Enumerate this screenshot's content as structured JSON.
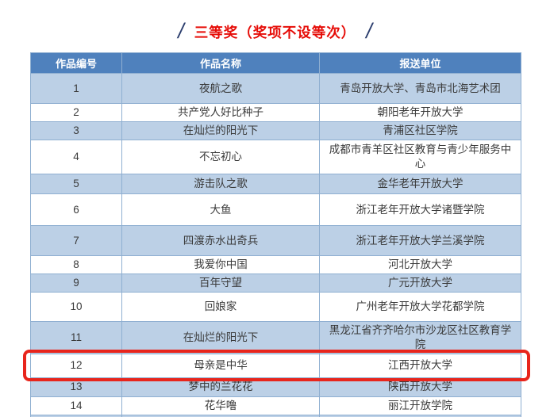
{
  "page": {
    "background": "#ffffff"
  },
  "title": {
    "text": "三等奖（奖项不设等次）",
    "left_slash": "/",
    "right_slash": "/",
    "color": "#e60c07",
    "slash_color": "#2c3e6e"
  },
  "table": {
    "headers": [
      "作品编号",
      "作品名称",
      "报送单位"
    ],
    "header_bg": "#4f81bd",
    "header_text_color": "#ffffff",
    "band_color": "#bcd0e6",
    "alt_color": "#ffffff",
    "border_color": "#8fafd1",
    "highlight_color": "#e8251c",
    "rows": [
      {
        "no": "1",
        "name": "夜航之歌",
        "unit": "青岛开放大学、青岛市北海艺术团",
        "highlighted": false
      },
      {
        "no": "2",
        "name": "共产党人好比种子",
        "unit": "朝阳老年开放大学",
        "highlighted": false
      },
      {
        "no": "3",
        "name": "在灿烂的阳光下",
        "unit": "青浦区社区学院",
        "highlighted": false
      },
      {
        "no": "4",
        "name": "不忘初心",
        "unit": "成都市青羊区社区教育与青少年服务中心",
        "highlighted": false
      },
      {
        "no": "5",
        "name": "游击队之歌",
        "unit": "金华老年开放大学",
        "highlighted": false
      },
      {
        "no": "6",
        "name": "大鱼",
        "unit": "浙江老年开放大学诸暨学院",
        "highlighted": false
      },
      {
        "no": "7",
        "name": "四渡赤水出奇兵",
        "unit": "浙江老年开放大学兰溪学院",
        "highlighted": false
      },
      {
        "no": "8",
        "name": "我爱你中国",
        "unit": "河北开放大学",
        "highlighted": false
      },
      {
        "no": "9",
        "name": "百年守望",
        "unit": "广元开放大学",
        "highlighted": false
      },
      {
        "no": "10",
        "name": "回娘家",
        "unit": "广州老年开放大学花都学院",
        "highlighted": false
      },
      {
        "no": "11",
        "name": "在灿烂的阳光下",
        "unit": "黑龙江省齐齐哈尔市沙龙区社区教育学院",
        "highlighted": false
      },
      {
        "no": "12",
        "name": "母亲是中华",
        "unit": "江西开放大学",
        "highlighted": true
      },
      {
        "no": "13",
        "name": "梦中的兰花花",
        "unit": "陕西开放大学",
        "highlighted": false
      },
      {
        "no": "14",
        "name": "花华噜",
        "unit": "丽江开放学院",
        "highlighted": false
      }
    ]
  }
}
